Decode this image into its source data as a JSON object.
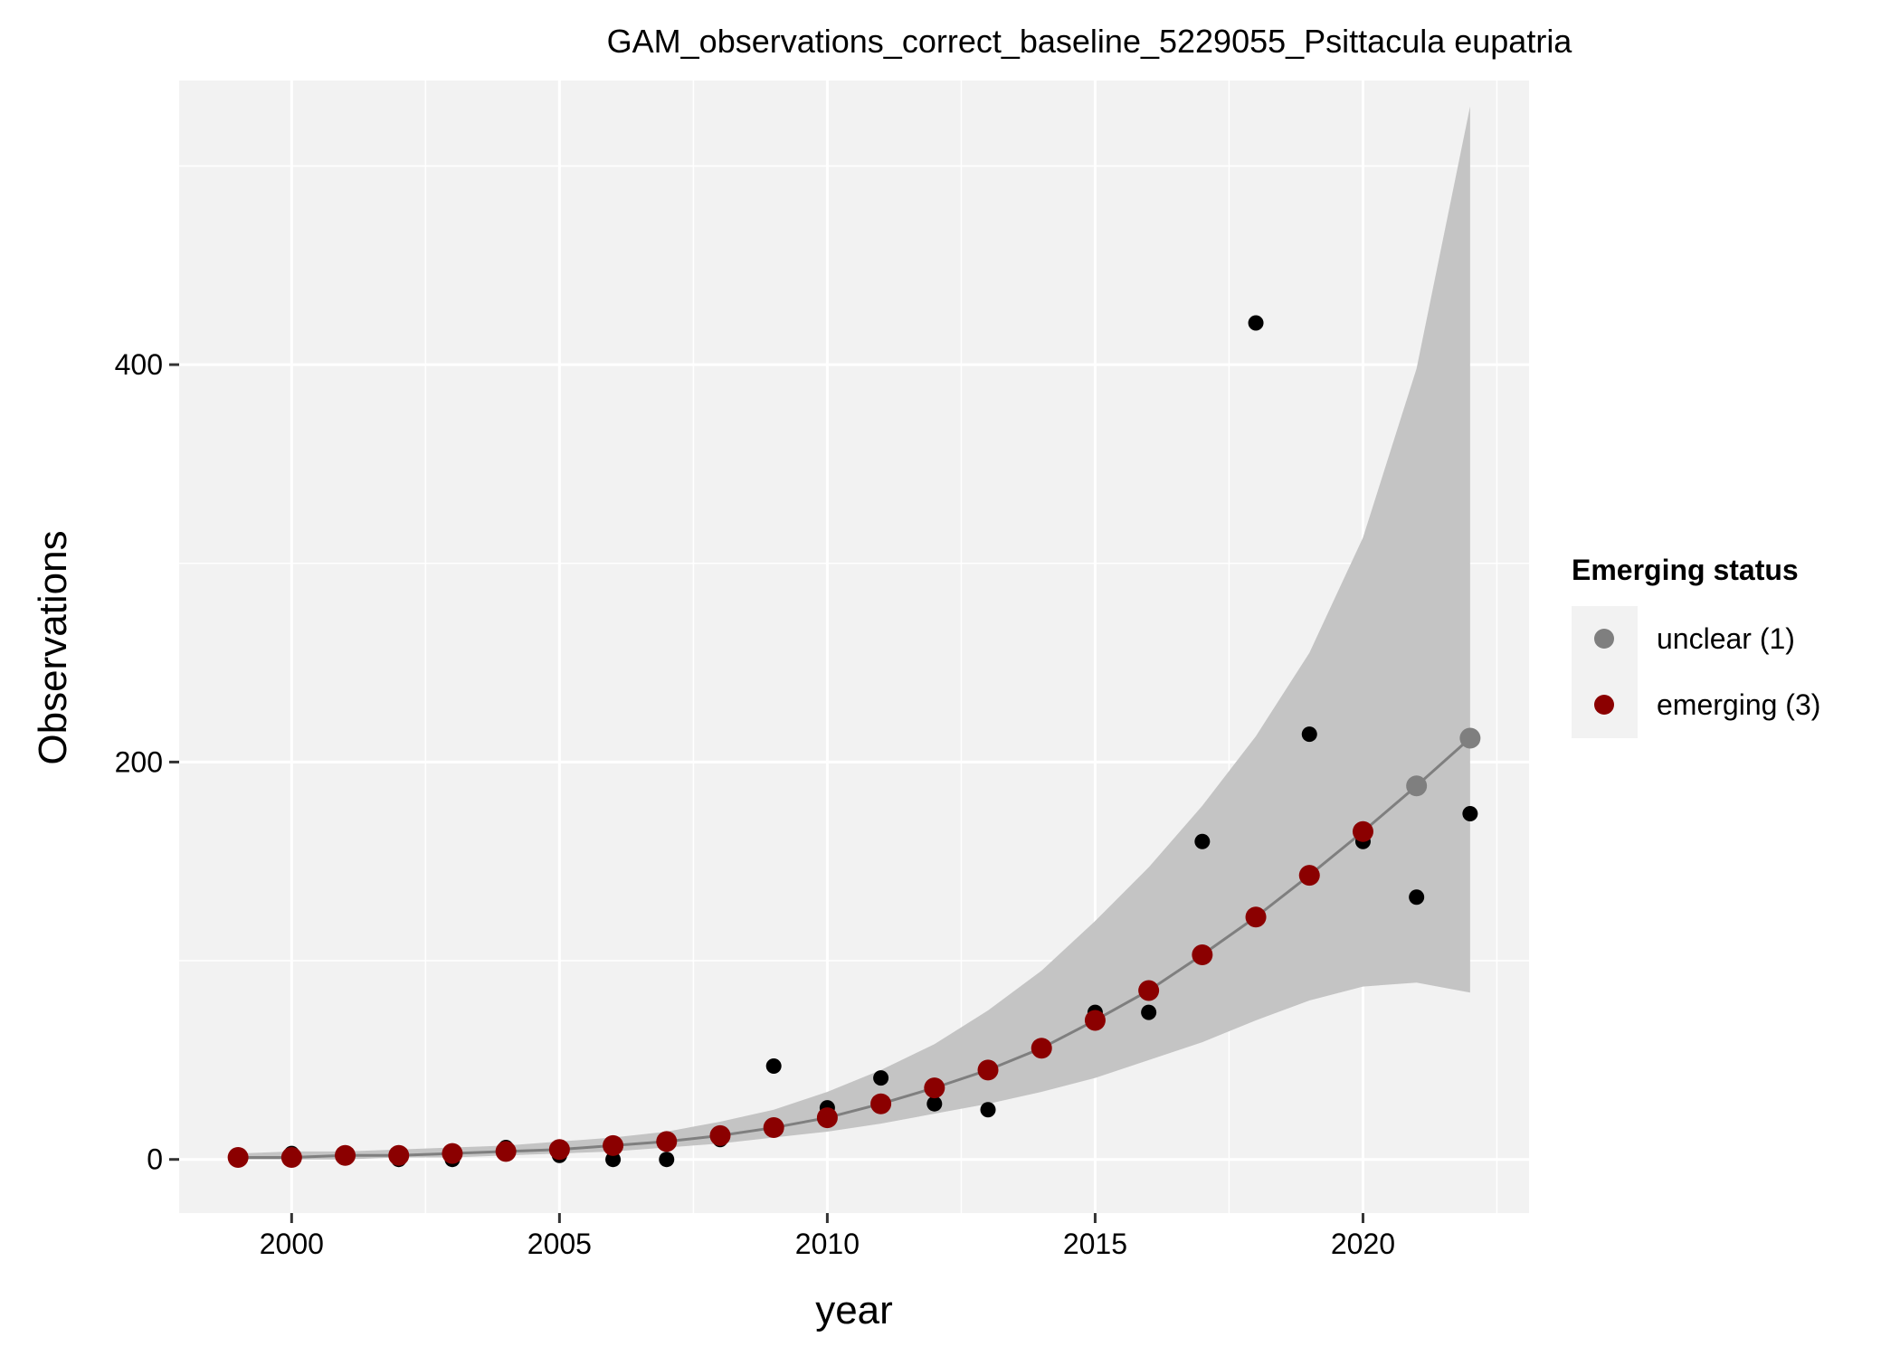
{
  "chart_data": {
    "type": "scatter",
    "title": "GAM_observations_correct_baseline_5229055_Psittacula eupatria",
    "xlabel": "year",
    "ylabel": "Observations",
    "xlim": [
      1997.9,
      2023.1
    ],
    "ylim": [
      -27,
      543
    ],
    "x_ticks": [
      2000,
      2005,
      2010,
      2015,
      2020
    ],
    "y_ticks": [
      0,
      200,
      400
    ],
    "grid": true,
    "legend": {
      "title": "Emerging status",
      "placement": "right",
      "entries": [
        {
          "label": "unclear (1)",
          "color": "#7f7f7f"
        },
        {
          "label": "emerging (3)",
          "color": "#8b0000"
        }
      ]
    },
    "observed": {
      "color": "#000000",
      "points": [
        {
          "x": 1999,
          "y": 1
        },
        {
          "x": 2000,
          "y": 3
        },
        {
          "x": 2001,
          "y": 1
        },
        {
          "x": 2002,
          "y": 0
        },
        {
          "x": 2003,
          "y": 0
        },
        {
          "x": 2004,
          "y": 6
        },
        {
          "x": 2005,
          "y": 2
        },
        {
          "x": 2006,
          "y": 0
        },
        {
          "x": 2007,
          "y": 0
        },
        {
          "x": 2008,
          "y": 10
        },
        {
          "x": 2009,
          "y": 47
        },
        {
          "x": 2010,
          "y": 26
        },
        {
          "x": 2011,
          "y": 41
        },
        {
          "x": 2012,
          "y": 28
        },
        {
          "x": 2013,
          "y": 25
        },
        {
          "x": 2015,
          "y": 74
        },
        {
          "x": 2016,
          "y": 74
        },
        {
          "x": 2017,
          "y": 160
        },
        {
          "x": 2018,
          "y": 421
        },
        {
          "x": 2019,
          "y": 214
        },
        {
          "x": 2020,
          "y": 160
        },
        {
          "x": 2021,
          "y": 132
        },
        {
          "x": 2022,
          "y": 174
        }
      ]
    },
    "fit": {
      "line_color": "#7f7f7f",
      "band_color": "#c4c4c4",
      "points": [
        {
          "x": 1999,
          "y": 1,
          "lower": 0,
          "upper": 3,
          "status": "emerging (3)"
        },
        {
          "x": 2000,
          "y": 1,
          "lower": 0,
          "upper": 4,
          "status": "emerging (3)"
        },
        {
          "x": 2001,
          "y": 2,
          "lower": 0,
          "upper": 4,
          "status": "emerging (3)"
        },
        {
          "x": 2002,
          "y": 2,
          "lower": 1,
          "upper": 5,
          "status": "emerging (3)"
        },
        {
          "x": 2003,
          "y": 3,
          "lower": 1,
          "upper": 6,
          "status": "emerging (3)"
        },
        {
          "x": 2004,
          "y": 4,
          "lower": 2,
          "upper": 7,
          "status": "emerging (3)"
        },
        {
          "x": 2005,
          "y": 5,
          "lower": 3,
          "upper": 9,
          "status": "emerging (3)"
        },
        {
          "x": 2006,
          "y": 7,
          "lower": 4,
          "upper": 11,
          "status": "emerging (3)"
        },
        {
          "x": 2007,
          "y": 9,
          "lower": 6,
          "upper": 14,
          "status": "emerging (3)"
        },
        {
          "x": 2008,
          "y": 12,
          "lower": 8,
          "upper": 19,
          "status": "emerging (3)"
        },
        {
          "x": 2009,
          "y": 16,
          "lower": 11,
          "upper": 25,
          "status": "emerging (3)"
        },
        {
          "x": 2010,
          "y": 21,
          "lower": 14,
          "upper": 34,
          "status": "emerging (3)"
        },
        {
          "x": 2011,
          "y": 28,
          "lower": 18,
          "upper": 45,
          "status": "emerging (3)"
        },
        {
          "x": 2012,
          "y": 36,
          "lower": 23,
          "upper": 58,
          "status": "emerging (3)"
        },
        {
          "x": 2013,
          "y": 45,
          "lower": 28,
          "upper": 75,
          "status": "emerging (3)"
        },
        {
          "x": 2014,
          "y": 56,
          "lower": 34,
          "upper": 95,
          "status": "emerging (3)"
        },
        {
          "x": 2015,
          "y": 70,
          "lower": 41,
          "upper": 120,
          "status": "emerging (3)"
        },
        {
          "x": 2016,
          "y": 85,
          "lower": 50,
          "upper": 147,
          "status": "emerging (3)"
        },
        {
          "x": 2017,
          "y": 103,
          "lower": 59,
          "upper": 178,
          "status": "emerging (3)"
        },
        {
          "x": 2018,
          "y": 122,
          "lower": 70,
          "upper": 213,
          "status": "emerging (3)"
        },
        {
          "x": 2019,
          "y": 143,
          "lower": 80,
          "upper": 255,
          "status": "emerging (3)"
        },
        {
          "x": 2020,
          "y": 165,
          "lower": 87,
          "upper": 313,
          "status": "emerging (3)"
        },
        {
          "x": 2021,
          "y": 188,
          "lower": 89,
          "upper": 398,
          "status": "unclear (1)"
        },
        {
          "x": 2022,
          "y": 212,
          "lower": 84,
          "upper": 530,
          "status": "unclear (1)"
        }
      ]
    }
  }
}
